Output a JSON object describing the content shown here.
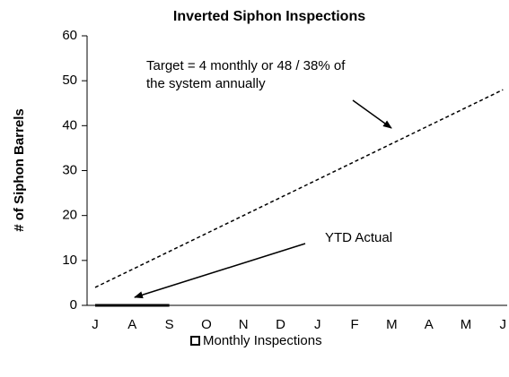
{
  "chart_data": {
    "type": "line",
    "title": "Inverted Siphon Inspections",
    "y_label": "# of Siphon Barrels",
    "categories": [
      "J",
      "A",
      "S",
      "O",
      "N",
      "D",
      "J",
      "F",
      "M",
      "A",
      "M",
      "J"
    ],
    "series": [
      {
        "values": [
          4,
          8,
          12,
          16,
          20,
          24,
          28,
          32,
          36,
          40,
          44,
          48
        ],
        "color": "#000000",
        "dash": true
      },
      {
        "name": "Monthly Inspections",
        "values": [
          0,
          0,
          0,
          null,
          null,
          null,
          null,
          null,
          null,
          null,
          null,
          null
        ],
        "color": "#000000",
        "dash": false
      }
    ],
    "ylim": [
      0,
      60
    ],
    "yticks": [
      0,
      10,
      20,
      30,
      40,
      50,
      60
    ],
    "grid": false,
    "legend": "bottom",
    "annotations": [
      {
        "lines": [
          "Target = 4 monthly or 48 / 38% of",
          "the system annually"
        ]
      },
      {
        "lines": [
          "YTD Actual"
        ]
      }
    ]
  }
}
